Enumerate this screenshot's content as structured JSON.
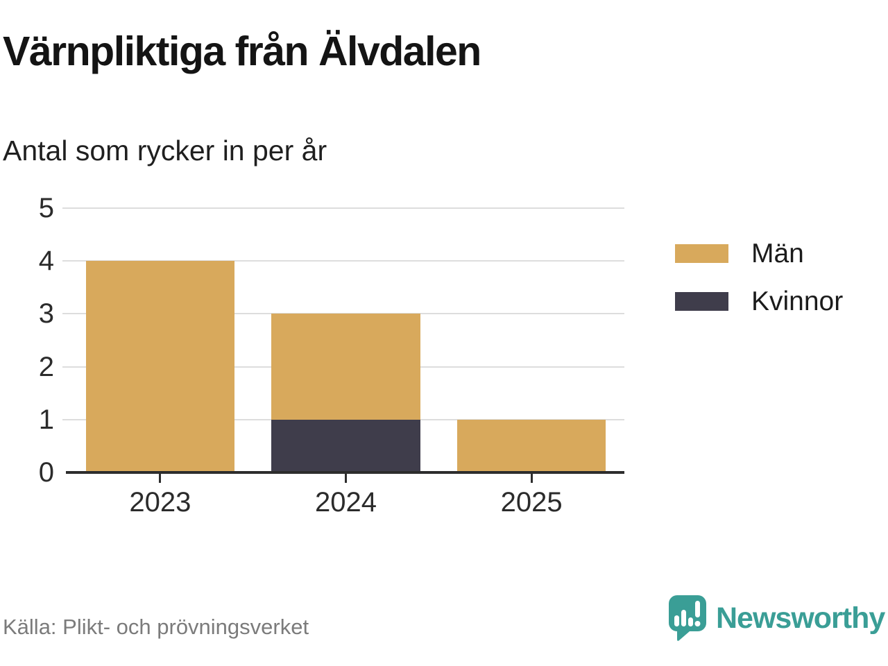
{
  "title": "Värnpliktiga från Älvdalen",
  "subtitle": "Antal som rycker in per år",
  "source_text": "Källa: Plikt- och prövningsverket",
  "brand": {
    "name": "Newsworthy",
    "color": "#3a9e96"
  },
  "colors": {
    "men": "#d8a95c",
    "women": "#3f3d4b",
    "gridline": "#dddddd",
    "axis": "#2d2d2d",
    "source_gray": "#7b7b7b"
  },
  "legend": {
    "items": [
      {
        "label": "Män",
        "color": "#d8a95c"
      },
      {
        "label": "Kvinnor",
        "color": "#3f3d4b"
      }
    ]
  },
  "chart_data": {
    "type": "bar",
    "stacked": true,
    "title": "Värnpliktiga från Älvdalen",
    "subtitle": "Antal som rycker in per år",
    "categories": [
      "2023",
      "2024",
      "2025"
    ],
    "series": [
      {
        "name": "Män",
        "color": "#d8a95c",
        "values": [
          4,
          2,
          1
        ]
      },
      {
        "name": "Kvinnor",
        "color": "#3f3d4b",
        "values": [
          0,
          1,
          0
        ]
      }
    ],
    "stack_bottom_to_top": [
      "Kvinnor",
      "Män"
    ],
    "totals": [
      4,
      3,
      1
    ],
    "xlabel": "",
    "ylabel": "",
    "ylim": [
      0,
      5
    ],
    "yticks": [
      0,
      1,
      2,
      3,
      4,
      5
    ],
    "grid": true,
    "legend_position": "right",
    "bar_width_fraction": 0.8
  }
}
